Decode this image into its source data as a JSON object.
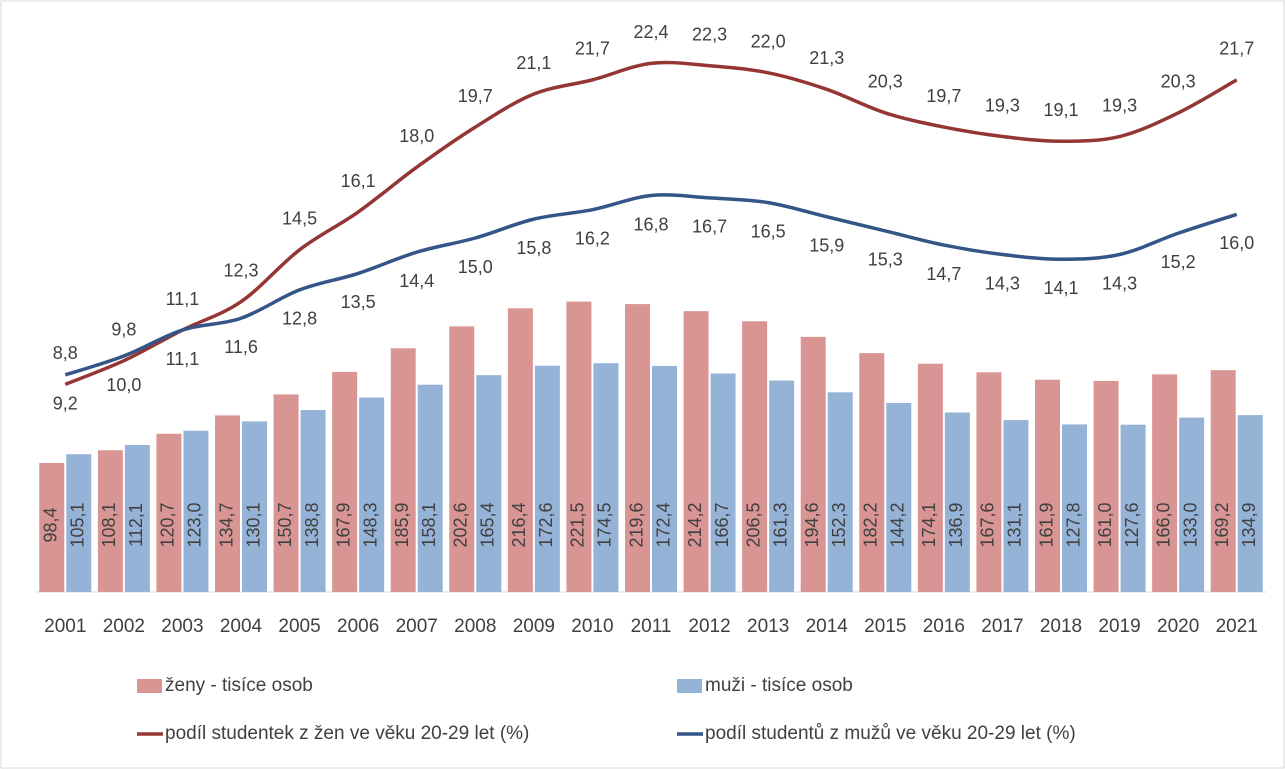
{
  "chart_data": {
    "type": "bar-line",
    "categories": [
      "2001",
      "2002",
      "2003",
      "2004",
      "2005",
      "2006",
      "2007",
      "2008",
      "2009",
      "2010",
      "2011",
      "2012",
      "2013",
      "2014",
      "2015",
      "2016",
      "2017",
      "2018",
      "2019",
      "2020",
      "2021"
    ],
    "ylim": [
      0,
      450
    ],
    "y2lim": [
      0,
      25
    ],
    "legend": "bottom",
    "series": [
      {
        "name": "ženy - tisíce osob",
        "type": "bar",
        "color": "#d99594",
        "label_color": "#c00000",
        "values": [
          98.4,
          108.1,
          120.7,
          134.7,
          150.7,
          167.9,
          185.9,
          202.6,
          216.4,
          221.5,
          219.6,
          214.2,
          206.5,
          194.6,
          182.2,
          174.1,
          167.6,
          161.9,
          161.0,
          166.0,
          169.2
        ],
        "value_labels": [
          "98,4",
          "108,1",
          "120,7",
          "134,7",
          "150,7",
          "167,9",
          "185,9",
          "202,6",
          "216,4",
          "221,5",
          "219,6",
          "214,2",
          "206,5",
          "194,6",
          "182,2",
          "174,1",
          "167,6",
          "161,9",
          "161,0",
          "166,0",
          "169,2"
        ]
      },
      {
        "name": "muži - tisíce osob",
        "type": "bar",
        "color": "#95b3d7",
        "label_color": "#1f3864",
        "values": [
          105.1,
          112.1,
          123.0,
          130.1,
          138.8,
          148.3,
          158.1,
          165.4,
          172.6,
          174.5,
          172.4,
          166.7,
          161.3,
          152.3,
          144.2,
          136.9,
          131.1,
          127.8,
          127.6,
          133.0,
          134.9
        ],
        "value_labels": [
          "105,1",
          "112,1",
          "123,0",
          "130,1",
          "138,8",
          "148,3",
          "158,1",
          "165,4",
          "172,6",
          "174,5",
          "172,4",
          "166,7",
          "161,3",
          "152,3",
          "144,2",
          "136,9",
          "131,1",
          "127,8",
          "127,6",
          "133,0",
          "134,9"
        ]
      },
      {
        "name": "podíl studentek z žen ve věku 20-29 let (%)",
        "type": "line",
        "axis": "y2",
        "color": "#943634",
        "label_color": "#c00000",
        "values": [
          8.8,
          9.8,
          11.1,
          12.3,
          14.5,
          16.1,
          18.0,
          19.7,
          21.1,
          21.7,
          22.4,
          22.3,
          22.0,
          21.3,
          20.3,
          19.7,
          19.3,
          19.1,
          19.3,
          20.3,
          21.7
        ],
        "value_labels": [
          "8,8",
          "9,8",
          "11,1",
          "12,3",
          "14,5",
          "16,1",
          "18,0",
          "19,7",
          "21,1",
          "21,7",
          "22,4",
          "22,3",
          "22,0",
          "21,3",
          "20,3",
          "19,7",
          "19,3",
          "19,1",
          "19,3",
          "20,3",
          "21,7"
        ]
      },
      {
        "name": "podíl studentů z mužů ve věku 20-29 let (%)",
        "type": "line",
        "axis": "y2",
        "color": "#335587",
        "label_color": "#1f3864",
        "values": [
          9.2,
          10.0,
          11.1,
          11.6,
          12.8,
          13.5,
          14.4,
          15.0,
          15.8,
          16.2,
          16.8,
          16.7,
          16.5,
          15.9,
          15.3,
          14.7,
          14.3,
          14.1,
          14.3,
          15.2,
          16.0
        ],
        "value_labels": [
          "9,2",
          "10,0",
          "11,1",
          "11,6",
          "12,8",
          "13,5",
          "14,4",
          "15,0",
          "15,8",
          "16,2",
          "16,8",
          "16,7",
          "16,5",
          "15,9",
          "15,3",
          "14,7",
          "14,3",
          "14,1",
          "14,3",
          "15,2",
          "16,0"
        ]
      }
    ]
  }
}
